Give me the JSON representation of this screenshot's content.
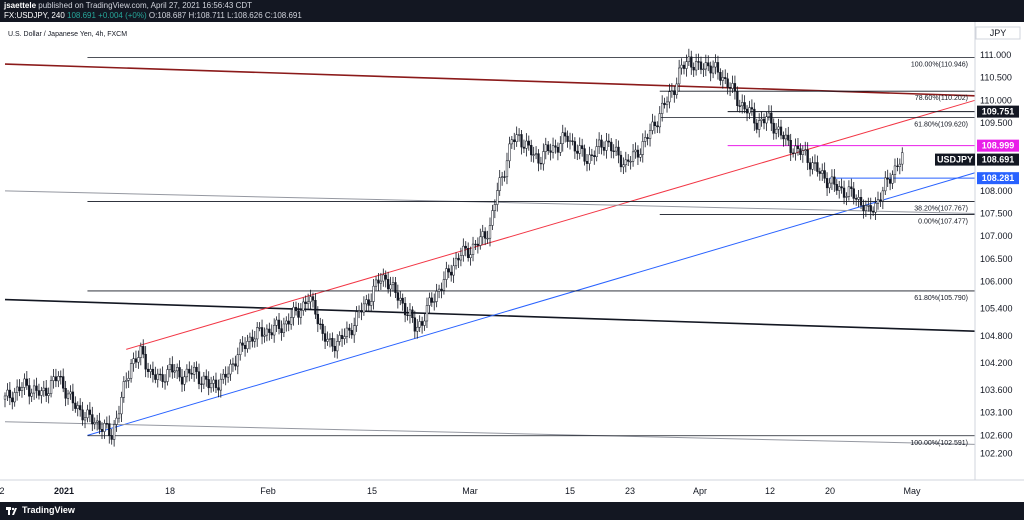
{
  "header": {
    "user": "jsaettele",
    "published_text": "published on TradingView.com, April 27, 2021 16:56:43 CDT",
    "symbol_line": "FX:USDJPY, 240",
    "ohlc": {
      "last": "108.691",
      "change": "+0.004 (+0%)",
      "open": "O:108.687",
      "high": "H:108.711",
      "low": "L:108.626",
      "close": "C:108.691"
    }
  },
  "footer": {
    "brand": "TradingView"
  },
  "chart_data": {
    "type": "candlestick",
    "title": "U.S. Dollar / Japanese Yen, 4h, FXCM",
    "currency_label": "JPY",
    "x_tick_labels": [
      "2",
      "2021",
      "18",
      "Feb",
      "15",
      "Mar",
      "15",
      "23",
      "Apr",
      "12",
      "20",
      "May"
    ],
    "y_tick_labels": [
      "111.000",
      "110.500",
      "110.000",
      "109.500",
      "108.000",
      "107.500",
      "107.000",
      "106.500",
      "106.000",
      "105.400",
      "104.800",
      "104.200",
      "103.600",
      "103.100",
      "102.600",
      "102.200"
    ],
    "y_ticks": [
      111.0,
      110.5,
      110.0,
      109.5,
      108.0,
      107.5,
      107.0,
      106.5,
      106.0,
      105.4,
      104.8,
      104.2,
      103.6,
      103.1,
      102.6,
      102.2
    ],
    "ylim": [
      102.1,
      111.2
    ],
    "price_path": [
      [
        0,
        103.4
      ],
      [
        8,
        103.7
      ],
      [
        15,
        103.5
      ],
      [
        22,
        103.9
      ],
      [
        28,
        103.3
      ],
      [
        34,
        103.0
      ],
      [
        40,
        102.8
      ],
      [
        44,
        102.6
      ],
      [
        48,
        103.4
      ],
      [
        52,
        104.2
      ],
      [
        56,
        104.4
      ],
      [
        60,
        104.0
      ],
      [
        64,
        103.8
      ],
      [
        68,
        104.1
      ],
      [
        72,
        103.9
      ],
      [
        78,
        104.0
      ],
      [
        84,
        103.7
      ],
      [
        90,
        103.8
      ],
      [
        96,
        104.4
      ],
      [
        102,
        104.8
      ],
      [
        108,
        104.9
      ],
      [
        114,
        105.0
      ],
      [
        120,
        105.3
      ],
      [
        125,
        105.6
      ],
      [
        128,
        105.4
      ],
      [
        131,
        104.8
      ],
      [
        134,
        104.6
      ],
      [
        138,
        104.7
      ],
      [
        142,
        104.9
      ],
      [
        146,
        105.3
      ],
      [
        150,
        105.6
      ],
      [
        154,
        106.0
      ],
      [
        157,
        106.1
      ],
      [
        160,
        105.8
      ],
      [
        163,
        105.6
      ],
      [
        166,
        105.3
      ],
      [
        169,
        105.0
      ],
      [
        172,
        105.1
      ],
      [
        176,
        105.6
      ],
      [
        180,
        105.9
      ],
      [
        184,
        106.3
      ],
      [
        188,
        106.6
      ],
      [
        192,
        106.7
      ],
      [
        196,
        106.9
      ],
      [
        200,
        107.2
      ],
      [
        203,
        108.0
      ],
      [
        206,
        108.5
      ],
      [
        209,
        109.1
      ],
      [
        212,
        109.2
      ],
      [
        216,
        108.9
      ],
      [
        220,
        108.7
      ],
      [
        224,
        108.9
      ],
      [
        228,
        109.0
      ],
      [
        232,
        109.2
      ],
      [
        236,
        108.9
      ],
      [
        240,
        108.7
      ],
      [
        244,
        108.9
      ],
      [
        248,
        109.1
      ],
      [
        252,
        108.8
      ],
      [
        256,
        108.6
      ],
      [
        260,
        108.8
      ],
      [
        264,
        109.1
      ],
      [
        268,
        109.5
      ],
      [
        272,
        109.9
      ],
      [
        276,
        110.3
      ],
      [
        279,
        110.7
      ],
      [
        282,
        110.9
      ],
      [
        286,
        110.7
      ],
      [
        290,
        110.8
      ],
      [
        294,
        110.6
      ],
      [
        298,
        110.4
      ],
      [
        302,
        110.0
      ],
      [
        306,
        109.8
      ],
      [
        310,
        109.5
      ],
      [
        314,
        109.6
      ],
      [
        318,
        109.4
      ],
      [
        322,
        109.1
      ],
      [
        326,
        108.9
      ],
      [
        330,
        108.8
      ],
      [
        334,
        108.5
      ],
      [
        338,
        108.3
      ],
      [
        342,
        108.1
      ],
      [
        346,
        108.0
      ],
      [
        350,
        107.9
      ],
      [
        354,
        107.7
      ],
      [
        356,
        107.5
      ],
      [
        359,
        107.7
      ],
      [
        362,
        108.0
      ],
      [
        365,
        108.3
      ],
      [
        368,
        108.6
      ],
      [
        370,
        108.7
      ]
    ],
    "lines": [
      {
        "name": "upper resistance line",
        "color": "#8b1a1a",
        "points": [
          [
            0,
            110.8
          ],
          [
            400,
            110.1
          ]
        ]
      },
      {
        "name": "lower trend line",
        "color": "#131722",
        "points": [
          [
            0,
            105.6
          ],
          [
            400,
            104.9
          ]
        ]
      },
      {
        "name": "red channel line",
        "color": "#f23645",
        "points": [
          [
            50,
            104.5
          ],
          [
            400,
            110.0
          ]
        ]
      },
      {
        "name": "blue trend line",
        "color": "#2962ff",
        "points": [
          [
            34,
            102.6
          ],
          [
            400,
            108.4
          ]
        ]
      },
      {
        "name": "grey upper line",
        "color": "#9598a1",
        "points": [
          [
            0,
            108.0
          ],
          [
            400,
            107.5
          ]
        ]
      },
      {
        "name": "grey lower line",
        "color": "#9598a1",
        "points": [
          [
            0,
            102.9
          ],
          [
            400,
            102.4
          ]
        ]
      }
    ],
    "fib_levels": [
      {
        "label": "100.00%(110.946)",
        "value": 110.946,
        "x_start": 34
      },
      {
        "label": "78.60%(110.202)",
        "value": 110.202,
        "x_start": 270
      },
      {
        "label": "61.80%(109.620)",
        "value": 109.62,
        "x_start": 270
      },
      {
        "label": "38.20%(107.767)",
        "value": 107.767,
        "x_start": 34
      },
      {
        "label": "0.00%(107.477)",
        "value": 107.477,
        "x_start": 270
      },
      {
        "label": "61.80%(105.790)",
        "value": 105.79,
        "x_start": 34
      },
      {
        "label": "100.00%(102.591)",
        "value": 102.591,
        "x_start": 34
      }
    ],
    "horizontal_markers": [
      {
        "label": "109.751",
        "value": 109.751,
        "x_start": 298,
        "color": "#131722",
        "tag_bg": "#131722",
        "tag_fg": "#ffffff"
      },
      {
        "label": "108.999",
        "value": 108.999,
        "x_start": 298,
        "color": "#e91ee9",
        "tag_bg": "#e91ee9",
        "tag_fg": "#ffffff"
      },
      {
        "label": "108.281",
        "value": 108.281,
        "x_start": 340,
        "color": "#2962ff",
        "tag_bg": "#2962ff",
        "tag_fg": "#ffffff"
      }
    ],
    "last_price": {
      "symbol": "USDJPY",
      "value_label": "108.691",
      "value": 108.691
    }
  }
}
